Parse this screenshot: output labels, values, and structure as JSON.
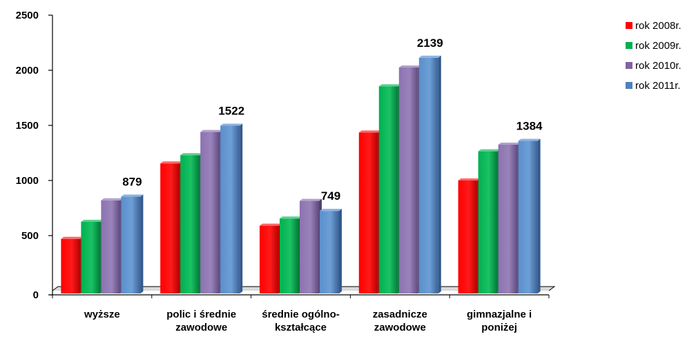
{
  "chart_data": {
    "type": "bar",
    "categories": [
      [
        "wyższe"
      ],
      [
        "polic i średnie",
        "zawodowe"
      ],
      [
        "średnie ogólno-",
        "kształcące"
      ],
      [
        "zasadnicze",
        "zawodowe"
      ],
      [
        "gimnazjalne i",
        "poniżej"
      ]
    ],
    "series": [
      {
        "name": "rok 2008r.",
        "color": "#ff0000",
        "values": [
          495,
          1180,
          615,
          1460,
          1025
        ]
      },
      {
        "name": "rok 2009r.",
        "color": "#00b050",
        "values": [
          650,
          1255,
          680,
          1880,
          1290
        ]
      },
      {
        "name": "rok 2010r.",
        "color": "#8064a2",
        "values": [
          845,
          1465,
          840,
          2050,
          1350
        ]
      },
      {
        "name": "rok 2011r.",
        "color": "#4f81bd",
        "values": [
          879,
          1522,
          749,
          2139,
          1384
        ]
      }
    ],
    "data_labels": [
      "879",
      "1522",
      "749",
      "2139",
      "1384"
    ],
    "y_ticks": [
      "0",
      "500",
      "1000",
      "1500",
      "2000",
      "2500"
    ],
    "ylim": [
      0,
      2500
    ],
    "grid": false,
    "legend_position": "top-right"
  }
}
